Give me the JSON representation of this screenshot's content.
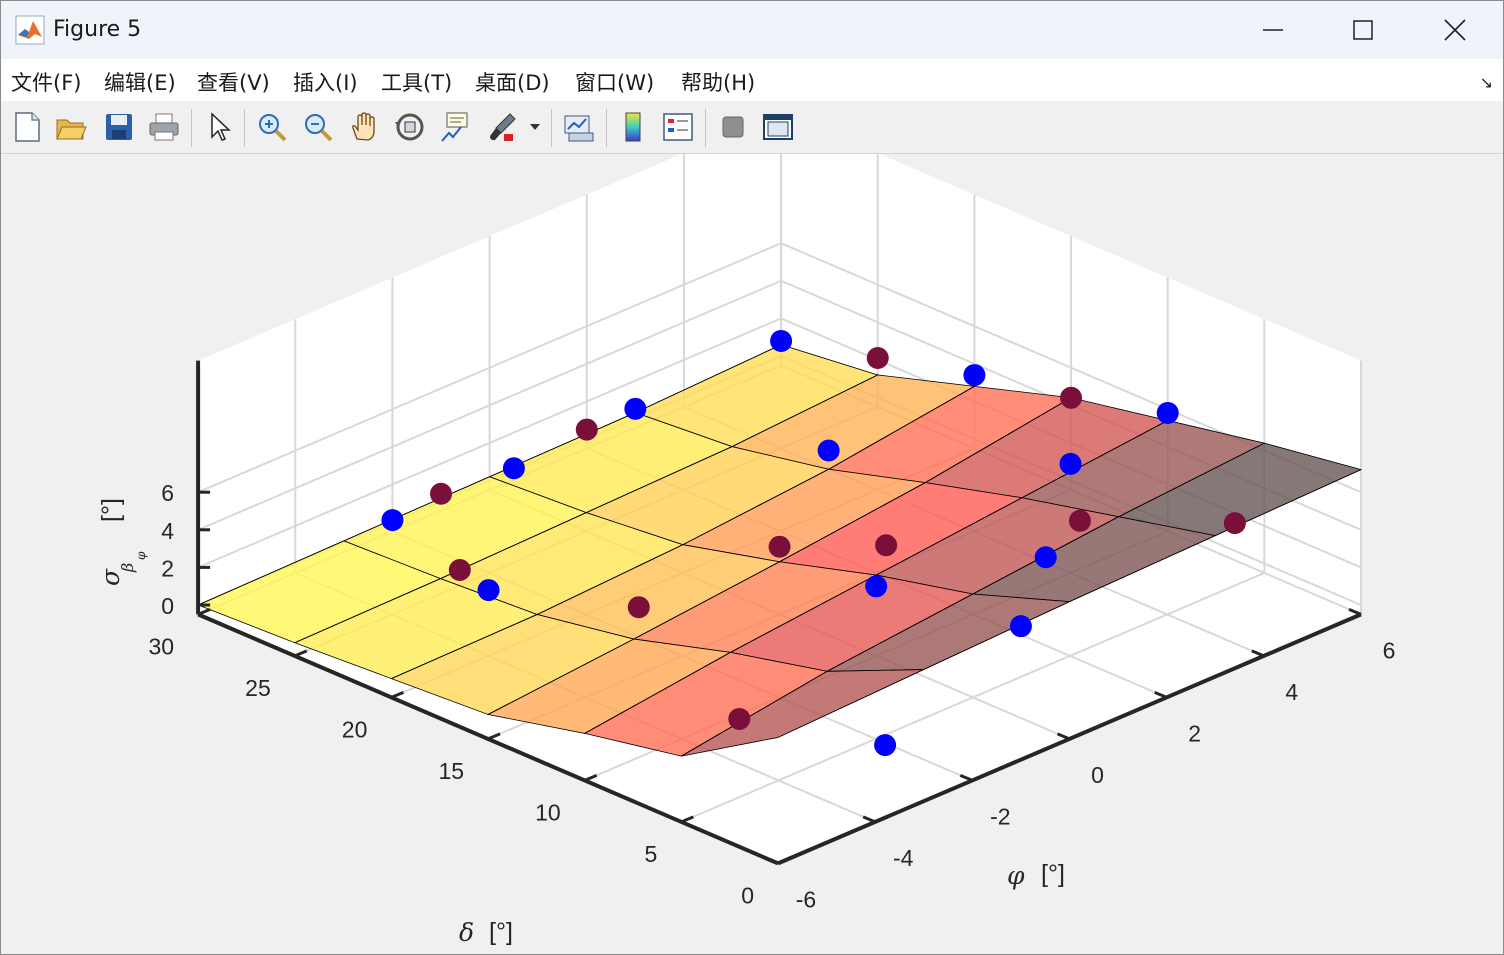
{
  "window": {
    "title": "Figure 5"
  },
  "menu": [
    {
      "label": "文件(F)"
    },
    {
      "label": "编辑(E)"
    },
    {
      "label": "查看(V)"
    },
    {
      "label": "插入(I)"
    },
    {
      "label": "工具(T)"
    },
    {
      "label": "桌面(D)"
    },
    {
      "label": "窗口(W)"
    },
    {
      "label": "帮助(H)"
    }
  ],
  "menu_expand_icon": "↘",
  "toolbar": [
    {
      "icon": "new-figure-icon"
    },
    {
      "icon": "open-file-icon"
    },
    {
      "icon": "save-icon"
    },
    {
      "icon": "print-icon"
    },
    {
      "icon": "pointer-icon"
    },
    {
      "icon": "zoom-in-icon"
    },
    {
      "icon": "zoom-out-icon"
    },
    {
      "icon": "pan-hand-icon"
    },
    {
      "icon": "rotate-3d-icon"
    },
    {
      "icon": "data-cursor-icon"
    },
    {
      "icon": "brush-icon"
    },
    {
      "icon": "link-plot-icon"
    },
    {
      "icon": "colorbar-icon"
    },
    {
      "icon": "legend-icon"
    },
    {
      "icon": "hide-plot-tools-icon"
    },
    {
      "icon": "show-plot-tools-icon"
    }
  ],
  "chart_data": {
    "type": "surface",
    "x_label_symbol": "φ",
    "x_label_unit": "[°]",
    "y_label_symbol": "δ",
    "y_label_unit": "[°]",
    "z_label_symbol": "σ",
    "z_label_sub1": "β",
    "z_label_sub2": "φ",
    "z_label_unit": "[°]",
    "x_ticks": [
      "-6",
      "-4",
      "-2",
      "0",
      "2",
      "4",
      "6"
    ],
    "y_ticks": [
      "0",
      "5",
      "10",
      "15",
      "20",
      "25",
      "30"
    ],
    "z_ticks": [
      "0",
      "2",
      "4",
      "6"
    ],
    "xlim": [
      -6,
      6
    ],
    "ylim": [
      0,
      30
    ],
    "zlim": [
      -0.5,
      13
    ],
    "grid": true,
    "colormap": [
      "#555555",
      "#ff5a55",
      "#ffff55"
    ],
    "surface_alpha": 0.8,
    "phi": [
      -6,
      -3,
      0,
      3,
      6
    ],
    "delta": [
      0,
      5,
      10,
      15,
      20,
      25,
      30
    ],
    "z": [
      [
        6.2,
        6.5,
        6.8,
        7.0,
        7.2
      ],
      [
        3.0,
        4.2,
        5.0,
        5.8,
        6.4
      ],
      [
        2.0,
        3.0,
        3.8,
        4.6,
        5.4
      ],
      [
        0.8,
        1.5,
        2.3,
        3.2,
        4.4
      ],
      [
        0.5,
        0.6,
        1.0,
        1.7,
        2.8
      ],
      [
        0.2,
        0.3,
        0.5,
        0.7,
        1.2
      ],
      [
        0.0,
        0.1,
        0.2,
        0.3,
        0.6
      ]
    ],
    "points_blue": [
      [
        -3.0,
        2.0,
        1.6
      ],
      [
        -4.0,
        20.0,
        3.0
      ],
      [
        0.0,
        10.0,
        3.2
      ],
      [
        4.0,
        10.0,
        5.3
      ],
      [
        6.0,
        10.0,
        5.8
      ],
      [
        -2.0,
        30.0,
        0.1
      ],
      [
        0.5,
        30.0,
        0.1
      ],
      [
        3.0,
        30.0,
        0.5
      ],
      [
        6.0,
        30.0,
        0.8
      ],
      [
        6.0,
        20.0,
        3.4
      ],
      [
        3.0,
        20.0,
        2.7
      ],
      [
        1.5,
        5.0,
        5.3
      ],
      [
        -1.0,
        0.0,
        6.6
      ]
    ],
    "points_dark": [
      [
        -3.0,
        24.0,
        1.2
      ],
      [
        -2.5,
        16.0,
        2.2
      ],
      [
        0.0,
        15.0,
        3.1
      ],
      [
        1.0,
        12.0,
        3.4
      ],
      [
        3.0,
        7.0,
        4.7
      ],
      [
        6.0,
        15.0,
        4.4
      ],
      [
        -1.0,
        30.0,
        0.4
      ],
      [
        2.0,
        30.0,
        0.5
      ],
      [
        6.0,
        25.0,
        2.1
      ],
      [
        4.0,
        1.5,
        5.9
      ],
      [
        -6.0,
        2.0,
        6.3
      ]
    ]
  }
}
